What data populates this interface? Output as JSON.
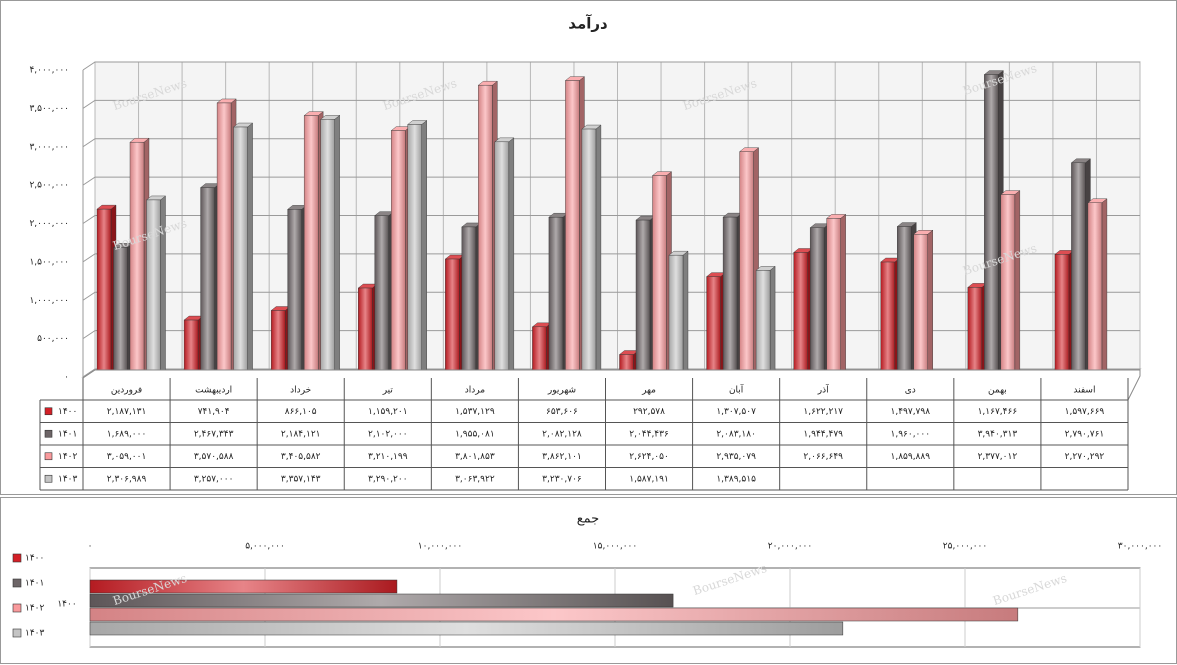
{
  "chart_data": [
    {
      "type": "bar3d",
      "title": "درآمد",
      "watermark": "BourseNews",
      "data_table": true,
      "categories": [
        "فروردین",
        "اردیبهشت",
        "خرداد",
        "تیر",
        "مرداد",
        "شهریور",
        "مهر",
        "آبان",
        "آذر",
        "دی",
        "بهمن",
        "اسفند"
      ],
      "ylim": [
        0,
        4000000
      ],
      "yticks": [
        {
          "value": 0,
          "label": "۰"
        },
        {
          "value": 500000,
          "label": "۵۰۰,۰۰۰"
        },
        {
          "value": 1000000,
          "label": "۱,۰۰۰,۰۰۰"
        },
        {
          "value": 1500000,
          "label": "۱,۵۰۰,۰۰۰"
        },
        {
          "value": 2000000,
          "label": "۲,۰۰۰,۰۰۰"
        },
        {
          "value": 2500000,
          "label": "۲,۵۰۰,۰۰۰"
        },
        {
          "value": 3000000,
          "label": "۳,۰۰۰,۰۰۰"
        },
        {
          "value": 3500000,
          "label": "۳,۵۰۰,۰۰۰"
        },
        {
          "value": 4000000,
          "label": "۴,۰۰۰,۰۰۰"
        }
      ],
      "grid": true,
      "series": [
        {
          "name": "۱۴۰۰",
          "color": "#d42027",
          "values": [
            2187131,
            741904,
            866105,
            1159201,
            1537129,
            653606,
            292578,
            1307507,
            1622217,
            1497798,
            1167466,
            1597669
          ],
          "value_labels": [
            "۲,۱۸۷,۱۳۱",
            "۷۴۱,۹۰۴",
            "۸۶۶,۱۰۵",
            "۱,۱۵۹,۲۰۱",
            "۱,۵۳۷,۱۲۹",
            "۶۵۳,۶۰۶",
            "۲۹۲,۵۷۸",
            "۱,۳۰۷,۵۰۷",
            "۱,۶۲۲,۲۱۷",
            "۱,۴۹۷,۷۹۸",
            "۱,۱۶۷,۴۶۶",
            "۱,۵۹۷,۶۶۹"
          ]
        },
        {
          "name": "۱۴۰۱",
          "color": "#6d6567",
          "values": [
            1689000,
            2467343,
            2184121,
            2102000,
            1955081,
            2082128,
            2044436,
            2083180,
            1944479,
            1960000,
            3940313,
            2790761
          ],
          "value_labels": [
            "۱,۶۸۹,۰۰۰",
            "۲,۴۶۷,۳۴۳",
            "۲,۱۸۴,۱۲۱",
            "۲,۱۰۲,۰۰۰",
            "۱,۹۵۵,۰۸۱",
            "۲,۰۸۲,۱۲۸",
            "۲,۰۴۴,۴۳۶",
            "۲,۰۸۳,۱۸۰",
            "۱,۹۴۴,۴۷۹",
            "۱,۹۶۰,۰۰۰",
            "۳,۹۴۰,۳۱۳",
            "۲,۷۹۰,۷۶۱"
          ]
        },
        {
          "name": "۱۴۰۲",
          "color": "#f99a9c",
          "values": [
            3059001,
            3570588,
            3405582,
            3210199,
            3801853,
            3862101,
            2624050,
            2935079,
            2066649,
            1859889,
            2377012,
            2270292
          ],
          "value_labels": [
            "۳,۰۵۹,۰۰۱",
            "۳,۵۷۰,۵۸۸",
            "۳,۴۰۵,۵۸۲",
            "۳,۲۱۰,۱۹۹",
            "۳,۸۰۱,۸۵۳",
            "۳,۸۶۲,۱۰۱",
            "۲,۶۲۴,۰۵۰",
            "۲,۹۳۵,۰۷۹",
            "۲,۰۶۶,۶۴۹",
            "۱,۸۵۹,۸۸۹",
            "۲,۳۷۷,۰۱۲",
            "۲,۲۷۰,۲۹۲"
          ]
        },
        {
          "name": "۱۴۰۳",
          "color": "#c4c4c4",
          "values": [
            2306989,
            3257000,
            3357143,
            3290200,
            3063922,
            3230706,
            1587191,
            1389515,
            null,
            null,
            null,
            null
          ],
          "value_labels": [
            "۲,۳۰۶,۹۸۹",
            "۳,۲۵۷,۰۰۰",
            "۳,۳۵۷,۱۴۳",
            "۳,۲۹۰,۲۰۰",
            "۳,۰۶۳,۹۲۲",
            "۳,۲۳۰,۷۰۶",
            "۱,۵۸۷,۱۹۱",
            "۱,۳۸۹,۵۱۵",
            null,
            null,
            null,
            null
          ]
        }
      ]
    },
    {
      "type": "hbar",
      "title": "جمع",
      "watermark": "BourseNews",
      "categories": [
        "۱۴۰۰"
      ],
      "xlim": [
        0,
        30000000
      ],
      "xticks": [
        {
          "value": 0,
          "label": "۰"
        },
        {
          "value": 5000000,
          "label": "۵,۰۰۰,۰۰۰"
        },
        {
          "value": 10000000,
          "label": "۱۰,۰۰۰,۰۰۰"
        },
        {
          "value": 15000000,
          "label": "۱۵,۰۰۰,۰۰۰"
        },
        {
          "value": 20000000,
          "label": "۲۰,۰۰۰,۰۰۰"
        },
        {
          "value": 25000000,
          "label": "۲۵,۰۰۰,۰۰۰"
        },
        {
          "value": 30000000,
          "label": "۳۰,۰۰۰,۰۰۰"
        }
      ],
      "grid": true,
      "series": [
        {
          "name": "۱۴۰۰",
          "color": "#d42027",
          "values": [
            8770000
          ]
        },
        {
          "name": "۱۴۰۱",
          "color": "#6d6567",
          "values": [
            16660000
          ]
        },
        {
          "name": "۱۴۰۲",
          "color": "#f99a9c",
          "values": [
            26510000
          ]
        },
        {
          "name": "۱۴۰۳",
          "color": "#c4c4c4",
          "values": [
            21510000
          ]
        }
      ]
    }
  ]
}
